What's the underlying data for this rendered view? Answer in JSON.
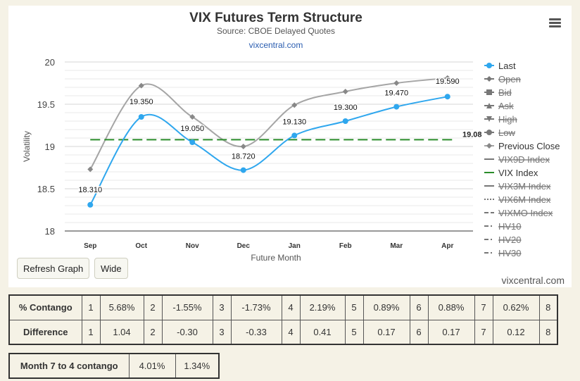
{
  "chart_data": {
    "type": "line",
    "title": "VIX Futures Term Structure",
    "subtitle": "Source: CBOE Delayed Quotes",
    "credit_link": "vixcentral.com",
    "xlabel": "Future Month",
    "ylabel": "Volatility",
    "categories": [
      "Sep",
      "Oct",
      "Nov",
      "Dec",
      "Jan",
      "Feb",
      "Mar",
      "Apr"
    ],
    "ylim": [
      18,
      20
    ],
    "yticks": [
      "18",
      "18.5",
      "19",
      "19.5",
      "20"
    ],
    "ytick_values": [
      18,
      18.5,
      19,
      19.5,
      20
    ],
    "grid": true,
    "legend_position": "right",
    "series": [
      {
        "name": "Last",
        "color": "#2fa7ee",
        "marker": "circle",
        "values": [
          18.31,
          19.35,
          19.05,
          18.72,
          19.13,
          19.3,
          19.47,
          19.59
        ],
        "data_labels": [
          "18.310",
          "19.350",
          "19.050",
          "18.720",
          "19.130",
          "19.300",
          "19.470",
          "19.590"
        ]
      },
      {
        "name": "Previous Close",
        "color": "#a5a5a5",
        "marker": "diamond",
        "values": [
          18.73,
          19.72,
          19.35,
          19.0,
          19.49,
          19.65,
          19.75,
          19.81
        ]
      },
      {
        "name": "VIX Index",
        "color": "#2a8c2a",
        "dash": "dashed",
        "value": 19.08,
        "value_label": "19.08"
      }
    ],
    "legend": [
      {
        "label": "Last",
        "symbol": "circle",
        "color": "#2fa7ee",
        "hidden": false
      },
      {
        "label": "Open",
        "symbol": "diamond",
        "color": "#666666",
        "hidden": true
      },
      {
        "label": "Bid",
        "symbol": "square",
        "color": "#666666",
        "hidden": true
      },
      {
        "label": "Ask",
        "symbol": "triangle",
        "color": "#666666",
        "hidden": true
      },
      {
        "label": "High",
        "symbol": "triangle-down",
        "color": "#666666",
        "hidden": true
      },
      {
        "label": "Low",
        "symbol": "circle",
        "color": "#666666",
        "hidden": true
      },
      {
        "label": "Previous Close",
        "symbol": "diamond",
        "color": "#a5a5a5",
        "hidden": false
      },
      {
        "label": "VIX9D Index",
        "symbol": "line",
        "color": "#666666",
        "hidden": true
      },
      {
        "label": "VIX Index",
        "symbol": "line",
        "color": "#2a8c2a",
        "hidden": false
      },
      {
        "label": "VIX3M Index",
        "symbol": "line",
        "color": "#666666",
        "hidden": true
      },
      {
        "label": "VIX6M Index",
        "symbol": "dotted",
        "color": "#666666",
        "hidden": true
      },
      {
        "label": "VIXMO Index",
        "symbol": "dashed",
        "color": "#666666",
        "hidden": true
      },
      {
        "label": "HV10",
        "symbol": "dashdot",
        "color": "#666666",
        "hidden": true
      },
      {
        "label": "HV20",
        "symbol": "dashdot",
        "color": "#666666",
        "hidden": true
      },
      {
        "label": "HV30",
        "symbol": "dashdot",
        "color": "#666666",
        "hidden": true
      }
    ]
  },
  "controls": {
    "refresh_label": "Refresh Graph",
    "wide_label": "Wide",
    "watermark": "vixcentral.com"
  },
  "contango_table": {
    "rows": [
      {
        "label": "% Contango",
        "cells": [
          "1",
          "5.68%",
          "2",
          "-1.55%",
          "3",
          "-1.73%",
          "4",
          "2.19%",
          "5",
          "0.89%",
          "6",
          "0.88%",
          "7",
          "0.62%",
          "8"
        ]
      },
      {
        "label": "Difference",
        "cells": [
          "1",
          "1.04",
          "2",
          "-0.30",
          "3",
          "-0.33",
          "4",
          "0.41",
          "5",
          "0.17",
          "6",
          "0.17",
          "7",
          "0.12",
          "8"
        ]
      }
    ]
  },
  "month74_table": {
    "label": "Month 7 to 4 contango",
    "values": [
      "4.01%",
      "1.34%"
    ]
  }
}
